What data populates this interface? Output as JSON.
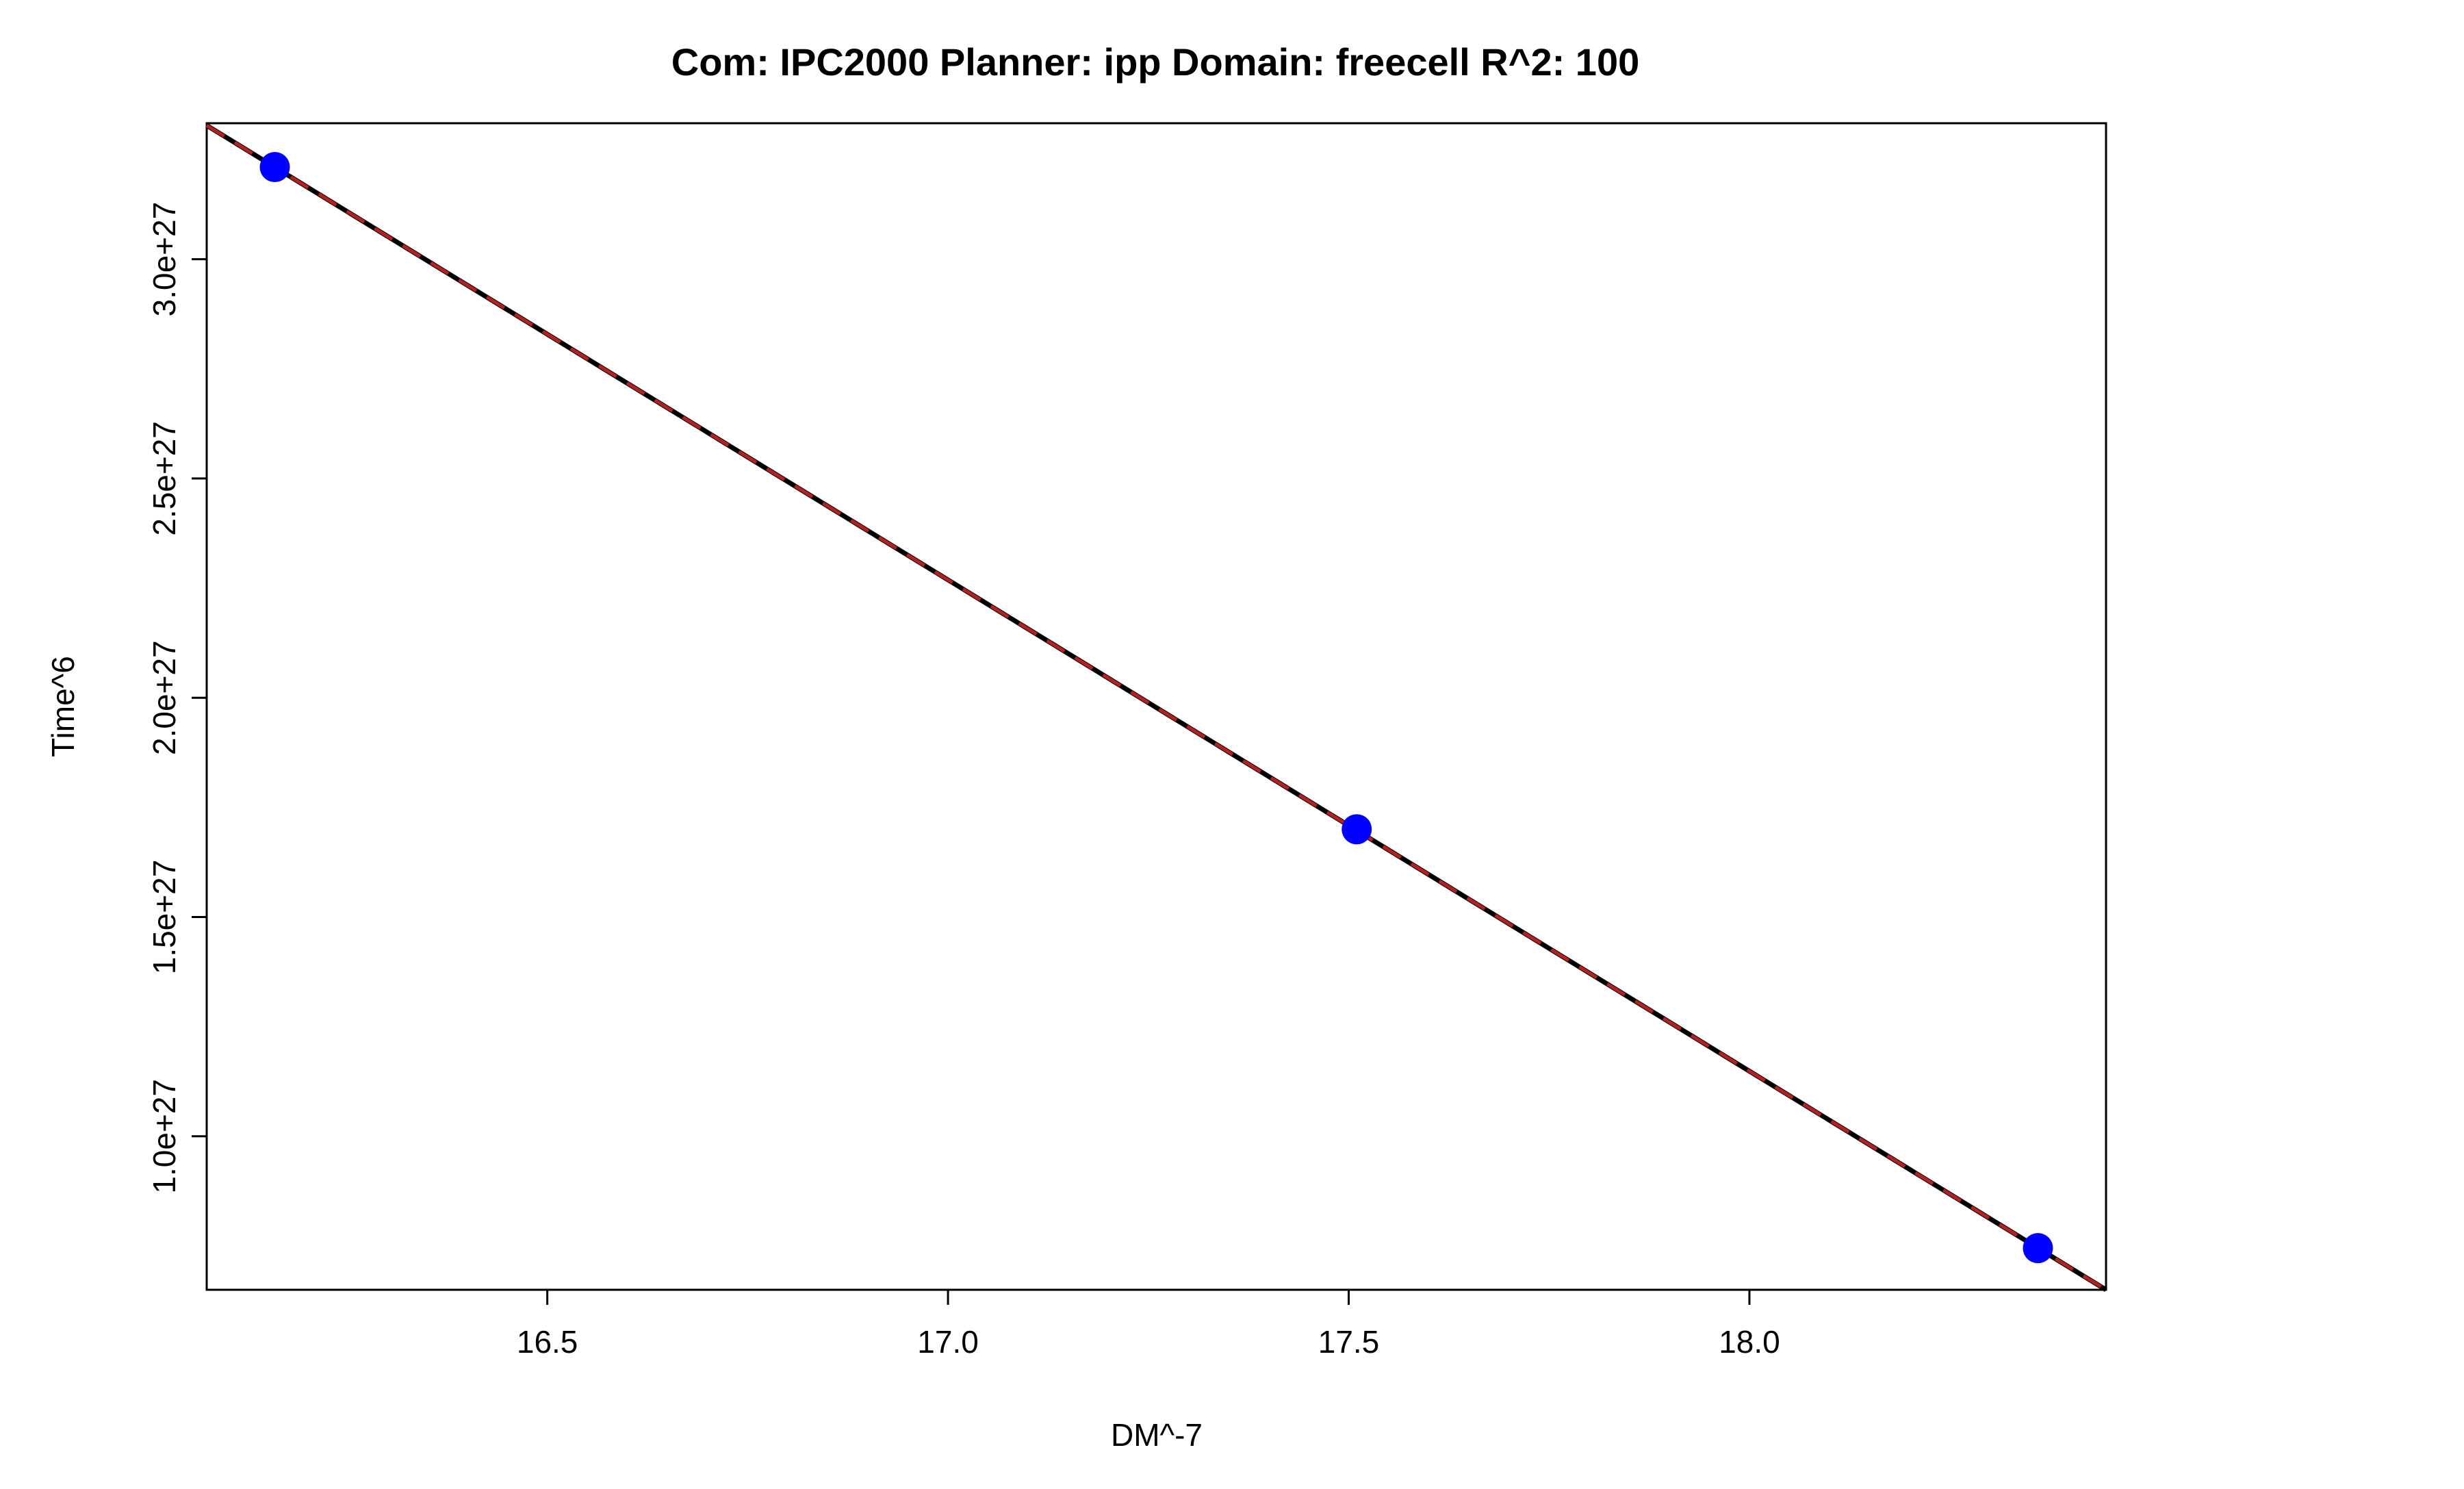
{
  "chart_data": {
    "type": "scatter",
    "title": "Com: IPC2000 Planner: ipp Domain: freecell R^2: 100",
    "xlabel": "DM^-7",
    "ylabel": "Time^6",
    "xlim": [
      16.075,
      18.445
    ],
    "ylim": [
      6.5e+26,
      3.31e+27
    ],
    "x_ticks": [
      16.5,
      17.0,
      17.5,
      18.0
    ],
    "x_tick_labels": [
      "16.5",
      "17.0",
      "17.5",
      "18.0"
    ],
    "y_ticks": [
      1e+27,
      1.5e+27,
      2e+27,
      2.5e+27,
      3e+27
    ],
    "y_tick_labels": [
      "1.0e+27",
      "1.5e+27",
      "2.0e+27",
      "2.5e+27",
      "3.0e+27"
    ],
    "points": [
      {
        "x": 16.16,
        "y": 3.21e+27
      },
      {
        "x": 17.51,
        "y": 1.7e+27
      },
      {
        "x": 18.36,
        "y": 7.45e+26
      }
    ],
    "fit_lines": [
      {
        "name": "fit",
        "x": [
          16.075,
          18.445
        ],
        "y": [
          3.305e+27,
          6.5e+26
        ],
        "color": "#000000",
        "dash": "solid"
      },
      {
        "name": "fit-dashed",
        "x": [
          16.075,
          18.445
        ],
        "y": [
          3.305e+27,
          6.5e+26
        ],
        "color": "#b22222",
        "dash": "dashed"
      }
    ],
    "point_color": "#0000ff",
    "grid": false
  }
}
